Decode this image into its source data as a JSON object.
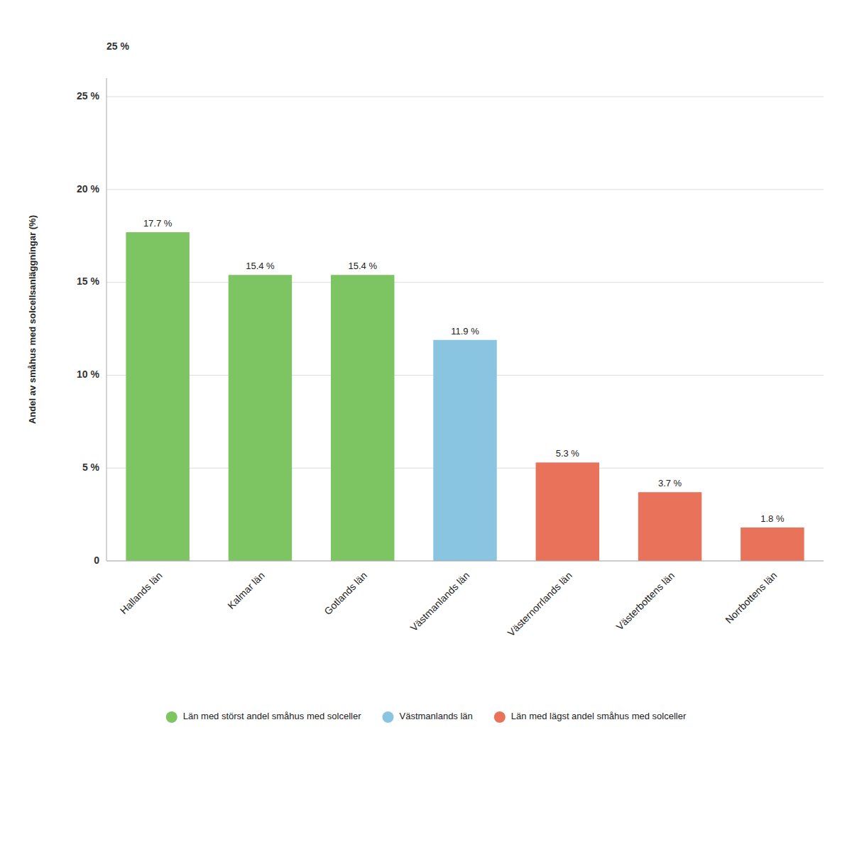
{
  "chart_data": {
    "type": "bar",
    "ylabel": "Andel av småhus med solcellsanläggningar (%)",
    "annotations": [
      {
        "text": "25 %"
      }
    ],
    "categories": [
      "Hallands län",
      "Kalmar län",
      "Gotlands län",
      "Västmanlands län",
      "Västernorrlands län",
      "Västerbottens län",
      "Norrbottens län"
    ],
    "series": [
      {
        "name": "Län med störst andel småhus med solceller",
        "color": "#7DC462",
        "values": [
          17.7,
          15.4,
          15.4,
          null,
          null,
          null,
          null
        ],
        "value_labels": [
          "17.7 %",
          "15.4 %",
          "15.4 %",
          null,
          null,
          null,
          null
        ]
      },
      {
        "name": "Västmanlands län",
        "color": "#89C4E1",
        "values": [
          null,
          null,
          null,
          11.9,
          null,
          null,
          null
        ],
        "value_labels": [
          null,
          null,
          null,
          "11.9 %",
          null,
          null,
          null
        ]
      },
      {
        "name": "Län med lägst andel småhus med solceller",
        "color": "#E8735A",
        "values": [
          null,
          null,
          null,
          null,
          5.3,
          3.7,
          1.8
        ],
        "value_labels": [
          null,
          null,
          null,
          null,
          "5.3 %",
          "3.7 %",
          "1.8 %"
        ]
      }
    ],
    "stacked": true,
    "data_labels": true,
    "ylim": [
      0,
      26
    ],
    "yticks": [
      0,
      {
        "value": 5,
        "label": "5 %"
      },
      {
        "value": 10,
        "label": "10 %"
      },
      {
        "value": 15,
        "label": "15 %"
      },
      {
        "value": 20,
        "label": "20 %"
      },
      {
        "value": 25,
        "label": "25 %"
      }
    ],
    "grid": true
  }
}
